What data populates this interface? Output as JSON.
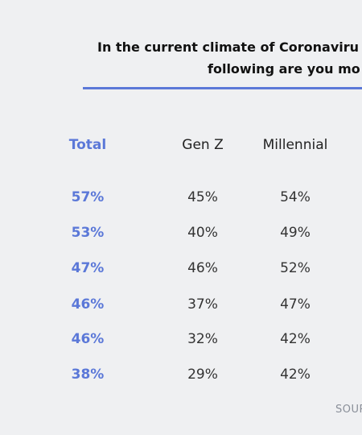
{
  "title_line1": "In the current climate of Coronaviru",
  "title_line2": "following are you mo",
  "source": "SOUR",
  "accent_color": "#5b78d8",
  "chart_data": {
    "type": "table",
    "columns": [
      "Total",
      "Gen Z",
      "Millennial"
    ],
    "rows": [
      [
        "57%",
        "45%",
        "54%"
      ],
      [
        "53%",
        "40%",
        "49%"
      ],
      [
        "47%",
        "46%",
        "52%"
      ],
      [
        "46%",
        "37%",
        "47%"
      ],
      [
        "46%",
        "32%",
        "42%"
      ],
      [
        "38%",
        "29%",
        "42%"
      ]
    ]
  }
}
